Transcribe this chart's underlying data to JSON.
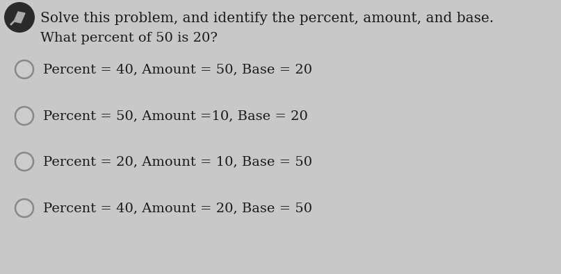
{
  "background_color": "#c8c8c8",
  "header_line1": "Solve this problem, and identify the percent, amount, and base.",
  "header_line2": "What percent of 50 is 20?",
  "options": [
    "Percent = 40, Amount = 50, Base = 20",
    "Percent = 50, Amount =10, Base = 20",
    "Percent = 20, Amount = 10, Base = 50",
    "Percent = 40, Amount = 20, Base = 50"
  ],
  "text_color": "#1a1a1a",
  "circle_edge_color": "#888888",
  "circle_face_color": "#cccccc",
  "icon_bg_color": "#2a2a2a",
  "icon_pencil_color": "#cccccc",
  "header1_fontsize": 14.5,
  "header2_fontsize": 14,
  "option_fontsize": 14,
  "figsize": [
    8.07,
    3.95
  ],
  "dpi": 100
}
